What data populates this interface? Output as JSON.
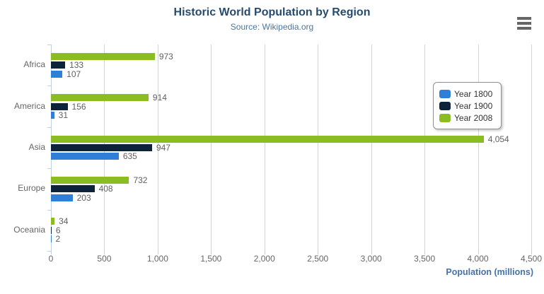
{
  "icons": {
    "export_menu": "hamburger-icon"
  },
  "colors": {
    "title": "#274b6d",
    "subtitle": "#4d759e",
    "axis_title": "#4572a7",
    "axis_labels": "#666666",
    "value_labels": "#606060",
    "gridline": "#d4d4d4",
    "axis_line": "#c0d0e0",
    "legend_border": "#909090",
    "legend_text": "#333333",
    "burger_icon": "#666666"
  },
  "chart_data": {
    "type": "bar",
    "title": "Historic World Population by Region",
    "subtitle": "Source: Wikipedia.org",
    "xlabel": "Population (millions)",
    "ylabel": "",
    "categories": [
      "Africa",
      "America",
      "Asia",
      "Europe",
      "Oceania"
    ],
    "series": [
      {
        "name": "Year 1800",
        "color": "#2f7ed8",
        "values": [
          107,
          31,
          635,
          203,
          2
        ]
      },
      {
        "name": "Year 1900",
        "color": "#0d233a",
        "values": [
          133,
          156,
          947,
          408,
          6
        ]
      },
      {
        "name": "Year 2008",
        "color": "#8bbc21",
        "values": [
          973,
          914,
          4054,
          732,
          34
        ]
      }
    ],
    "bar_order_top_to_bottom": [
      "Year 2008",
      "Year 1900",
      "Year 1800"
    ],
    "xlim": [
      0,
      4500
    ],
    "tick_interval": 500,
    "tick_labels": [
      "0",
      "500",
      "1,000",
      "1,500",
      "2,000",
      "2,500",
      "3,000",
      "3,500",
      "4,000",
      "4,500"
    ],
    "grid": true,
    "legend_position": "right-inside",
    "legend_entries": [
      "Year 1800",
      "Year 1900",
      "Year 2008"
    ],
    "value_label_format": "thousands-comma"
  }
}
